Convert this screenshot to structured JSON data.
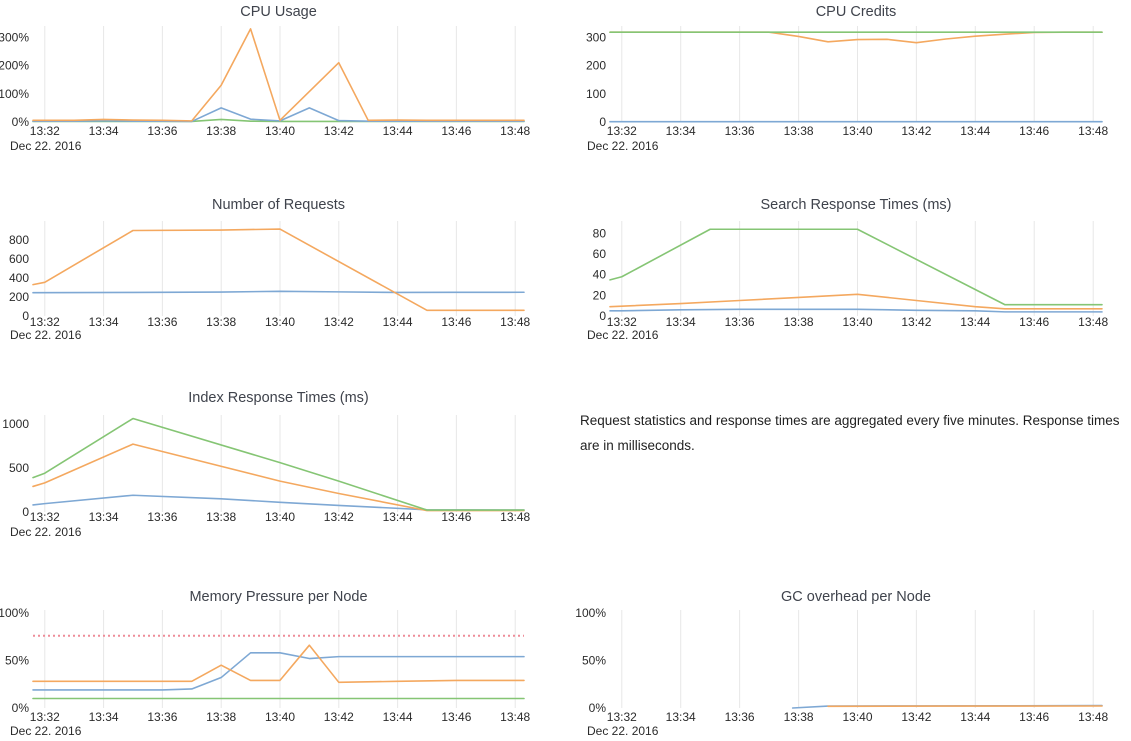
{
  "page": {
    "background": "#ffffff"
  },
  "date_label": "Dec 22. 2016",
  "note": {
    "text": "Request statistics and response times are aggregated every five minutes. Response times are in milliseconds."
  },
  "palette": {
    "blue": "#7ea8d4",
    "orange": "#f4a85f",
    "green": "#85c574",
    "red": "#ee8c98",
    "grid": "#e7e7e7",
    "title_color": "#3f434c",
    "tick_color": "#2b2b2b"
  },
  "x_axis": {
    "tick_labels": [
      "13:32",
      "13:34",
      "13:36",
      "13:38",
      "13:40",
      "13:42",
      "13:44",
      "13:46",
      "13:48"
    ],
    "tick_values": [
      32,
      34,
      36,
      38,
      40,
      42,
      44,
      46,
      48
    ],
    "domain": [
      31.6,
      48.3
    ],
    "date_label": "Dec 22. 2016"
  },
  "chart_data": [
    {
      "id": "cpu-usage",
      "type": "line",
      "title": "CPU Usage",
      "y_domain": [
        0,
        340
      ],
      "y_ticks": [
        {
          "v": 0,
          "label": "0%"
        },
        {
          "v": 100,
          "label": "100%"
        },
        {
          "v": 200,
          "label": "200%"
        },
        {
          "v": 300,
          "label": "300%"
        }
      ],
      "series": [
        {
          "name": "green",
          "color_key": "green",
          "points": [
            [
              31.6,
              2
            ],
            [
              33,
              2
            ],
            [
              34,
              2
            ],
            [
              35,
              2
            ],
            [
              36,
              2
            ],
            [
              37,
              2
            ],
            [
              38,
              9
            ],
            [
              39,
              3
            ],
            [
              40,
              2
            ],
            [
              42,
              2
            ],
            [
              44,
              2
            ],
            [
              46,
              2
            ],
            [
              48.3,
              2
            ]
          ]
        },
        {
          "name": "blue",
          "color_key": "blue",
          "points": [
            [
              31.6,
              3
            ],
            [
              33,
              3
            ],
            [
              34,
              4
            ],
            [
              35,
              3
            ],
            [
              36,
              3
            ],
            [
              37,
              2
            ],
            [
              38,
              50
            ],
            [
              39,
              10
            ],
            [
              40,
              4
            ],
            [
              41,
              50
            ],
            [
              42,
              5
            ],
            [
              43,
              3
            ],
            [
              44,
              3
            ],
            [
              46,
              3
            ],
            [
              48.3,
              3
            ]
          ]
        },
        {
          "name": "orange",
          "color_key": "orange",
          "points": [
            [
              31.6,
              6
            ],
            [
              33,
              6
            ],
            [
              34,
              9
            ],
            [
              35,
              7
            ],
            [
              36,
              6
            ],
            [
              37,
              4
            ],
            [
              38,
              130
            ],
            [
              39,
              330
            ],
            [
              40,
              6
            ],
            [
              42,
              210
            ],
            [
              43,
              6
            ],
            [
              44,
              7
            ],
            [
              45,
              6
            ],
            [
              46,
              6
            ],
            [
              47,
              6
            ],
            [
              48.3,
              6
            ]
          ]
        }
      ]
    },
    {
      "id": "cpu-credits",
      "type": "line",
      "title": "CPU Credits",
      "y_domain": [
        0,
        340
      ],
      "y_ticks": [
        {
          "v": 0,
          "label": "0"
        },
        {
          "v": 100,
          "label": "100"
        },
        {
          "v": 200,
          "label": "200"
        },
        {
          "v": 300,
          "label": "300"
        }
      ],
      "series": [
        {
          "name": "blue",
          "color_key": "blue",
          "points": [
            [
              31.6,
              1
            ],
            [
              48.3,
              1
            ]
          ]
        },
        {
          "name": "orange",
          "color_key": "orange",
          "points": [
            [
              31.6,
              318
            ],
            [
              37,
              318
            ],
            [
              38,
              303
            ],
            [
              39,
              284
            ],
            [
              40,
              292
            ],
            [
              41,
              293
            ],
            [
              42,
              281
            ],
            [
              43,
              294
            ],
            [
              44,
              304
            ],
            [
              45,
              311
            ],
            [
              46,
              317
            ],
            [
              47,
              318
            ],
            [
              48.3,
              318
            ]
          ]
        },
        {
          "name": "green",
          "color_key": "green",
          "points": [
            [
              31.6,
              318
            ],
            [
              48.3,
              318
            ]
          ]
        }
      ]
    },
    {
      "id": "number-of-requests",
      "type": "line",
      "title": "Number of Requests",
      "y_domain": [
        0,
        1000
      ],
      "y_ticks": [
        {
          "v": 0,
          "label": "0"
        },
        {
          "v": 200,
          "label": "200"
        },
        {
          "v": 400,
          "label": "400"
        },
        {
          "v": 600,
          "label": "600"
        },
        {
          "v": 800,
          "label": "800"
        }
      ],
      "series": [
        {
          "name": "blue",
          "color_key": "blue",
          "points": [
            [
              31.6,
              245
            ],
            [
              35,
              248
            ],
            [
              38,
              252
            ],
            [
              40,
              260
            ],
            [
              42,
              254
            ],
            [
              44,
              248
            ],
            [
              46,
              249
            ],
            [
              48.3,
              250
            ]
          ]
        },
        {
          "name": "orange",
          "color_key": "orange",
          "points": [
            [
              31.6,
              330
            ],
            [
              32,
              355
            ],
            [
              35,
              900
            ],
            [
              38,
              905
            ],
            [
              40,
              915
            ],
            [
              45,
              60
            ],
            [
              48.3,
              60
            ]
          ]
        }
      ]
    },
    {
      "id": "search-response-times",
      "type": "line",
      "title": "Search Response Times (ms)",
      "y_domain": [
        0,
        92
      ],
      "y_ticks": [
        {
          "v": 0,
          "label": "0"
        },
        {
          "v": 20,
          "label": "20"
        },
        {
          "v": 40,
          "label": "40"
        },
        {
          "v": 60,
          "label": "60"
        },
        {
          "v": 80,
          "label": "80"
        }
      ],
      "series": [
        {
          "name": "blue",
          "color_key": "blue",
          "points": [
            [
              31.6,
              5
            ],
            [
              32,
              5
            ],
            [
              34,
              6
            ],
            [
              36,
              6.5
            ],
            [
              38,
              6.5
            ],
            [
              40,
              6.5
            ],
            [
              42,
              5.5
            ],
            [
              44,
              5
            ],
            [
              45,
              4
            ],
            [
              48.3,
              4
            ]
          ]
        },
        {
          "name": "orange",
          "color_key": "orange",
          "points": [
            [
              31.6,
              9
            ],
            [
              32,
              9.5
            ],
            [
              34,
              12
            ],
            [
              36,
              15
            ],
            [
              38,
              18
            ],
            [
              40,
              21
            ],
            [
              42,
              15
            ],
            [
              44,
              9
            ],
            [
              45,
              7
            ],
            [
              48.3,
              7
            ]
          ]
        },
        {
          "name": "green",
          "color_key": "green",
          "points": [
            [
              31.6,
              35
            ],
            [
              32,
              38
            ],
            [
              35,
              84
            ],
            [
              40,
              84
            ],
            [
              45,
              11
            ],
            [
              48.3,
              11
            ]
          ]
        }
      ]
    },
    {
      "id": "index-response-times",
      "type": "line",
      "title": "Index Response Times (ms)",
      "y_domain": [
        0,
        1100
      ],
      "y_ticks": [
        {
          "v": 0,
          "label": "0"
        },
        {
          "v": 500,
          "label": "500"
        },
        {
          "v": 1000,
          "label": "1000"
        }
      ],
      "series": [
        {
          "name": "blue",
          "color_key": "blue",
          "points": [
            [
              31.6,
              80
            ],
            [
              32,
              95
            ],
            [
              35,
              190
            ],
            [
              38,
              150
            ],
            [
              40,
              110
            ],
            [
              42,
              75
            ],
            [
              45,
              25
            ],
            [
              48.3,
              22
            ]
          ]
        },
        {
          "name": "orange",
          "color_key": "orange",
          "points": [
            [
              31.6,
              290
            ],
            [
              32,
              330
            ],
            [
              35,
              770
            ],
            [
              40,
              350
            ],
            [
              42,
              210
            ],
            [
              45,
              16
            ],
            [
              48.3,
              16
            ]
          ]
        },
        {
          "name": "green",
          "color_key": "green",
          "points": [
            [
              31.6,
              390
            ],
            [
              32,
              440
            ],
            [
              35,
              1060
            ],
            [
              40,
              560
            ],
            [
              42,
              350
            ],
            [
              45,
              22
            ],
            [
              48.3,
              22
            ]
          ]
        }
      ]
    },
    {
      "id": "memory-pressure-per-node",
      "type": "line",
      "title": "Memory Pressure per Node",
      "y_domain": [
        0,
        103
      ],
      "y_ticks": [
        {
          "v": 0,
          "label": "0%"
        },
        {
          "v": 50,
          "label": "50%"
        },
        {
          "v": 100,
          "label": "100%"
        }
      ],
      "series": [
        {
          "name": "red-threshold",
          "color_key": "red",
          "dashed": true,
          "points": [
            [
              31.6,
              76
            ],
            [
              48.3,
              76
            ]
          ]
        },
        {
          "name": "green",
          "color_key": "green",
          "points": [
            [
              31.6,
              10
            ],
            [
              48.3,
              10
            ]
          ]
        },
        {
          "name": "blue",
          "color_key": "blue",
          "points": [
            [
              31.6,
              19
            ],
            [
              36,
              19
            ],
            [
              37,
              20
            ],
            [
              38,
              32
            ],
            [
              39,
              58
            ],
            [
              40,
              58
            ],
            [
              41,
              52
            ],
            [
              42,
              54
            ],
            [
              44,
              54
            ],
            [
              46,
              54
            ],
            [
              48.3,
              54
            ]
          ]
        },
        {
          "name": "orange",
          "color_key": "orange",
          "points": [
            [
              31.6,
              28
            ],
            [
              37,
              28
            ],
            [
              38,
              45
            ],
            [
              39,
              29
            ],
            [
              40,
              29
            ],
            [
              41,
              66
            ],
            [
              42,
              27
            ],
            [
              44,
              28
            ],
            [
              46,
              29
            ],
            [
              48.3,
              29
            ]
          ]
        }
      ]
    },
    {
      "id": "gc-overhead-per-node",
      "type": "line",
      "title": "GC overhead per Node",
      "y_domain": [
        0,
        103
      ],
      "y_ticks": [
        {
          "v": 0,
          "label": "0%"
        },
        {
          "v": 50,
          "label": "50%"
        },
        {
          "v": 100,
          "label": "100%"
        }
      ],
      "series": [
        {
          "name": "blue",
          "color_key": "blue",
          "points": [
            [
              37.8,
              0
            ],
            [
              39,
              2
            ],
            [
              42,
              2.2
            ],
            [
              45,
              2.3
            ],
            [
              48.3,
              2.6
            ]
          ]
        },
        {
          "name": "orange",
          "color_key": "orange",
          "points": [
            [
              39,
              1.8
            ],
            [
              43,
              2
            ],
            [
              48.3,
              2.1
            ]
          ]
        }
      ]
    }
  ]
}
